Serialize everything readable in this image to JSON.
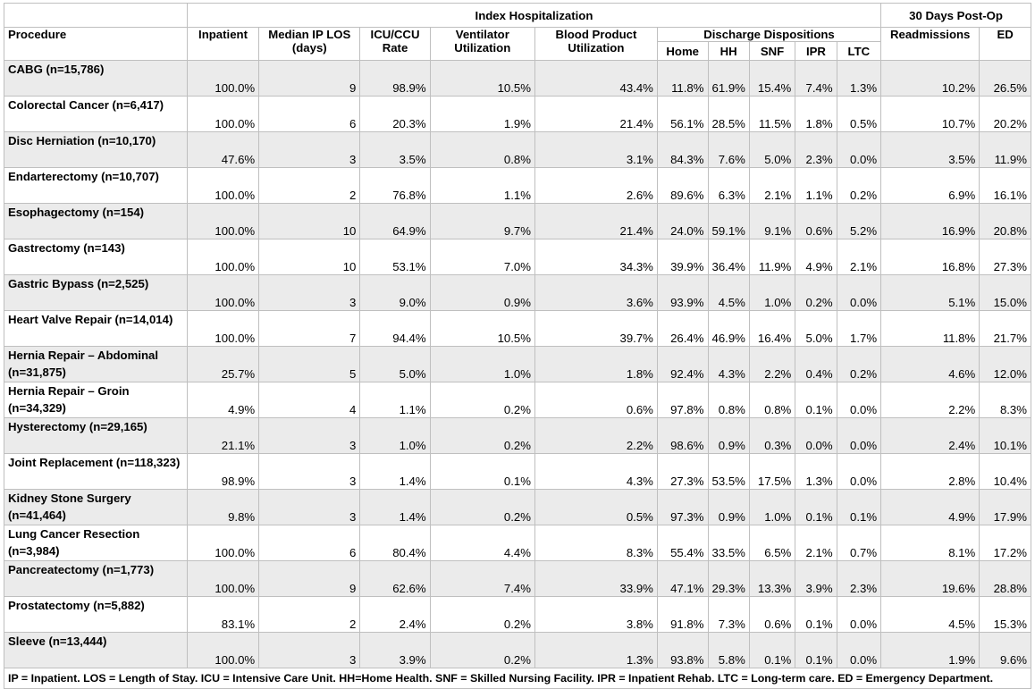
{
  "headers": {
    "index_hosp": "Index Hospitalization",
    "post_op": "30 Days Post-Op",
    "procedure": "Procedure",
    "inpatient": "Inpatient",
    "median_ip_los": "Median IP LOS (days)",
    "icu_ccu_rate": "ICU/CCU Rate",
    "ventilator": "Ventilator Utilization",
    "blood_product": "Blood Product Utilization",
    "discharge": "Discharge Dispositions",
    "home": "Home",
    "hh": "HH",
    "snf": "SNF",
    "ipr": "IPR",
    "ltc": "LTC",
    "readmissions": "Readmissions",
    "ed": "ED"
  },
  "rows": [
    {
      "procedure": "CABG (n=15,786)",
      "values": [
        "100.0%",
        "9",
        "98.9%",
        "10.5%",
        "43.4%",
        "11.8%",
        "61.9%",
        "15.4%",
        "7.4%",
        "1.3%",
        "10.2%",
        "26.5%"
      ]
    },
    {
      "procedure": "Colorectal Cancer (n=6,417)",
      "values": [
        "100.0%",
        "6",
        "20.3%",
        "1.9%",
        "21.4%",
        "56.1%",
        "28.5%",
        "11.5%",
        "1.8%",
        "0.5%",
        "10.7%",
        "20.2%"
      ]
    },
    {
      "procedure": "Disc Herniation (n=10,170)",
      "values": [
        "47.6%",
        "3",
        "3.5%",
        "0.8%",
        "3.1%",
        "84.3%",
        "7.6%",
        "5.0%",
        "2.3%",
        "0.0%",
        "3.5%",
        "11.9%"
      ]
    },
    {
      "procedure": "Endarterectomy (n=10,707)",
      "values": [
        "100.0%",
        "2",
        "76.8%",
        "1.1%",
        "2.6%",
        "89.6%",
        "6.3%",
        "2.1%",
        "1.1%",
        "0.2%",
        "6.9%",
        "16.1%"
      ]
    },
    {
      "procedure": "Esophagectomy (n=154)",
      "values": [
        "100.0%",
        "10",
        "64.9%",
        "9.7%",
        "21.4%",
        "24.0%",
        "59.1%",
        "9.1%",
        "0.6%",
        "5.2%",
        "16.9%",
        "20.8%"
      ]
    },
    {
      "procedure": "Gastrectomy (n=143)",
      "values": [
        "100.0%",
        "10",
        "53.1%",
        "7.0%",
        "34.3%",
        "39.9%",
        "36.4%",
        "11.9%",
        "4.9%",
        "2.1%",
        "16.8%",
        "27.3%"
      ]
    },
    {
      "procedure": "Gastric Bypass (n=2,525)",
      "values": [
        "100.0%",
        "3",
        "9.0%",
        "0.9%",
        "3.6%",
        "93.9%",
        "4.5%",
        "1.0%",
        "0.2%",
        "0.0%",
        "5.1%",
        "15.0%"
      ]
    },
    {
      "procedure": "Heart Valve Repair (n=14,014)",
      "values": [
        "100.0%",
        "7",
        "94.4%",
        "10.5%",
        "39.7%",
        "26.4%",
        "46.9%",
        "16.4%",
        "5.0%",
        "1.7%",
        "11.8%",
        "21.7%"
      ]
    },
    {
      "procedure": "Hernia Repair – Abdominal (n=31,875)",
      "values": [
        "25.7%",
        "5",
        "5.0%",
        "1.0%",
        "1.8%",
        "92.4%",
        "4.3%",
        "2.2%",
        "0.4%",
        "0.2%",
        "4.6%",
        "12.0%"
      ]
    },
    {
      "procedure": "Hernia Repair – Groin (n=34,329)",
      "values": [
        "4.9%",
        "4",
        "1.1%",
        "0.2%",
        "0.6%",
        "97.8%",
        "0.8%",
        "0.8%",
        "0.1%",
        "0.0%",
        "2.2%",
        "8.3%"
      ]
    },
    {
      "procedure": "Hysterectomy (n=29,165)",
      "values": [
        "21.1%",
        "3",
        "1.0%",
        "0.2%",
        "2.2%",
        "98.6%",
        "0.9%",
        "0.3%",
        "0.0%",
        "0.0%",
        "2.4%",
        "10.1%"
      ]
    },
    {
      "procedure": "Joint Replacement (n=118,323)",
      "values": [
        "98.9%",
        "3",
        "1.4%",
        "0.1%",
        "4.3%",
        "27.3%",
        "53.5%",
        "17.5%",
        "1.3%",
        "0.0%",
        "2.8%",
        "10.4%"
      ]
    },
    {
      "procedure": "Kidney Stone Surgery (n=41,464)",
      "values": [
        "9.8%",
        "3",
        "1.4%",
        "0.2%",
        "0.5%",
        "97.3%",
        "0.9%",
        "1.0%",
        "0.1%",
        "0.1%",
        "4.9%",
        "17.9%"
      ]
    },
    {
      "procedure": "Lung Cancer Resection (n=3,984)",
      "values": [
        "100.0%",
        "6",
        "80.4%",
        "4.4%",
        "8.3%",
        "55.4%",
        "33.5%",
        "6.5%",
        "2.1%",
        "0.7%",
        "8.1%",
        "17.2%"
      ]
    },
    {
      "procedure": "Pancreatectomy (n=1,773)",
      "values": [
        "100.0%",
        "9",
        "62.6%",
        "7.4%",
        "33.9%",
        "47.1%",
        "29.3%",
        "13.3%",
        "3.9%",
        "2.3%",
        "19.6%",
        "28.8%"
      ]
    },
    {
      "procedure": "Prostatectomy (n=5,882)",
      "values": [
        "83.1%",
        "2",
        "2.4%",
        "0.2%",
        "3.8%",
        "91.8%",
        "7.3%",
        "0.6%",
        "0.1%",
        "0.0%",
        "4.5%",
        "15.3%"
      ]
    },
    {
      "procedure": "Sleeve (n=13,444)",
      "values": [
        "100.0%",
        "3",
        "3.9%",
        "0.2%",
        "1.3%",
        "93.8%",
        "5.8%",
        "0.1%",
        "0.1%",
        "0.0%",
        "1.9%",
        "9.6%"
      ]
    }
  ],
  "footnote": "IP = Inpatient. LOS = Length of Stay. ICU = Intensive Care Unit. HH=Home Health. SNF = Skilled Nursing Facility. IPR = Inpatient Rehab. LTC = Long-term care.  ED = Emergency Department.",
  "colors": {
    "shade": "#ebebeb",
    "border": "#bfbfbf"
  }
}
